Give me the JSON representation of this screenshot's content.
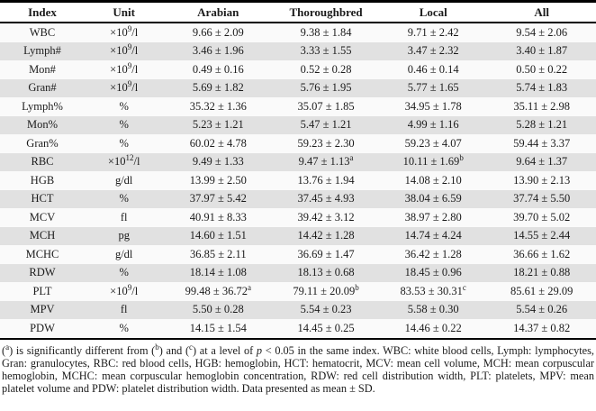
{
  "colors": {
    "row_alt": "#e1e1e1",
    "row_base": "#fafafa",
    "rule": "#000000",
    "text": "#1b1b1b"
  },
  "table": {
    "headers": [
      "Index",
      "Unit",
      "Arabian",
      "Thoroughbred",
      "Local",
      "All"
    ],
    "rows": [
      {
        "index": "WBC",
        "unit": "×10^9^/l",
        "values": [
          "9.66 ± 2.09",
          "9.38 ± 1.84",
          "9.71 ± 2.42",
          "9.54 ± 2.06"
        ]
      },
      {
        "index": "Lymph#",
        "unit": "×10^9^/l",
        "values": [
          "3.46 ± 1.96",
          "3.33 ± 1.55",
          "3.47 ± 2.32",
          "3.40 ± 1.87"
        ]
      },
      {
        "index": "Mon#",
        "unit": "×10^9^/l",
        "values": [
          "0.49 ± 0.16",
          "0.52 ± 0.28",
          "0.46 ± 0.14",
          "0.50 ± 0.22"
        ]
      },
      {
        "index": "Gran#",
        "unit": "×10^9^/l",
        "values": [
          "5.69 ± 1.82",
          "5.76 ± 1.95",
          "5.77 ± 1.65",
          "5.74 ± 1.83"
        ]
      },
      {
        "index": "Lymph%",
        "unit": "%",
        "values": [
          "35.32 ± 1.36",
          "35.07 ± 1.85",
          "34.95 ± 1.78",
          "35.11 ± 2.98"
        ]
      },
      {
        "index": "Mon%",
        "unit": "%",
        "values": [
          "5.23 ± 1.21",
          "5.47 ± 1.21",
          "4.99 ± 1.16",
          "5.28 ± 1.21"
        ]
      },
      {
        "index": "Gran%",
        "unit": "%",
        "values": [
          "60.02 ± 4.78",
          "59.23 ± 2.30",
          "59.23 ± 4.07",
          "59.44 ± 3.37"
        ]
      },
      {
        "index": "RBC",
        "unit": "×10^12^/l",
        "values": [
          "9.49 ± 1.33",
          "9.47 ± 1.13^a^",
          "10.11 ± 1.69^b^",
          "9.64 ± 1.37"
        ]
      },
      {
        "index": "HGB",
        "unit": "g/dl",
        "values": [
          "13.99 ± 2.50",
          "13.76 ± 1.94",
          "14.08 ± 2.10",
          "13.90 ± 2.13"
        ]
      },
      {
        "index": "HCT",
        "unit": "%",
        "values": [
          "37.97 ± 5.42",
          "37.45 ± 4.93",
          "38.04 ± 6.59",
          "37.74 ± 5.50"
        ]
      },
      {
        "index": "MCV",
        "unit": "fl",
        "values": [
          "40.91 ± 8.33",
          "39.42 ± 3.12",
          "38.97 ± 2.80",
          "39.70 ± 5.02"
        ]
      },
      {
        "index": "MCH",
        "unit": "pg",
        "values": [
          "14.60 ± 1.51",
          "14.42 ± 1.28",
          "14.74 ± 4.24",
          "14.55 ± 2.44"
        ]
      },
      {
        "index": "MCHC",
        "unit": "g/dl",
        "values": [
          "36.85 ± 2.11",
          "36.69 ± 1.47",
          "36.42 ± 1.28",
          "36.66 ± 1.62"
        ]
      },
      {
        "index": "RDW",
        "unit": "%",
        "values": [
          "18.14 ± 1.08",
          "18.13 ± 0.68",
          "18.45 ± 0.96",
          "18.21 ± 0.88"
        ]
      },
      {
        "index": "PLT",
        "unit": "×10^9^/l",
        "values": [
          "99.48 ± 36.72^a^",
          "79.11 ± 20.09^b^",
          "83.53 ± 30.31^c^",
          "85.61 ± 29.09"
        ]
      },
      {
        "index": "MPV",
        "unit": "fl",
        "values": [
          "5.50 ± 0.28",
          "5.54 ± 0.23",
          "5.58 ± 0.30",
          "5.54 ± 0.26"
        ]
      },
      {
        "index": "PDW",
        "unit": "%",
        "values": [
          "14.15 ± 1.54",
          "14.45 ± 0.25",
          "14.46 ± 0.22",
          "14.37 ± 0.82"
        ]
      }
    ]
  },
  "footnote": "(^a^) is significantly different from (^b^) and (^c^) at a level of ~p~ < 0.05 in the same index. WBC: white blood cells, Lymph: lymphocytes, Gran: granulocytes, RBC: red blood cells, HGB: hemoglobin, HCT: hematocrit, MCV: mean cell volume, MCH: mean corpuscular hemoglobin, MCHC: mean corpuscular hemoglobin concentration, RDW: red cell distribution width, PLT: platelets, MPV: mean platelet volume and PDW: platelet distribution width. Data presented as mean ± SD."
}
